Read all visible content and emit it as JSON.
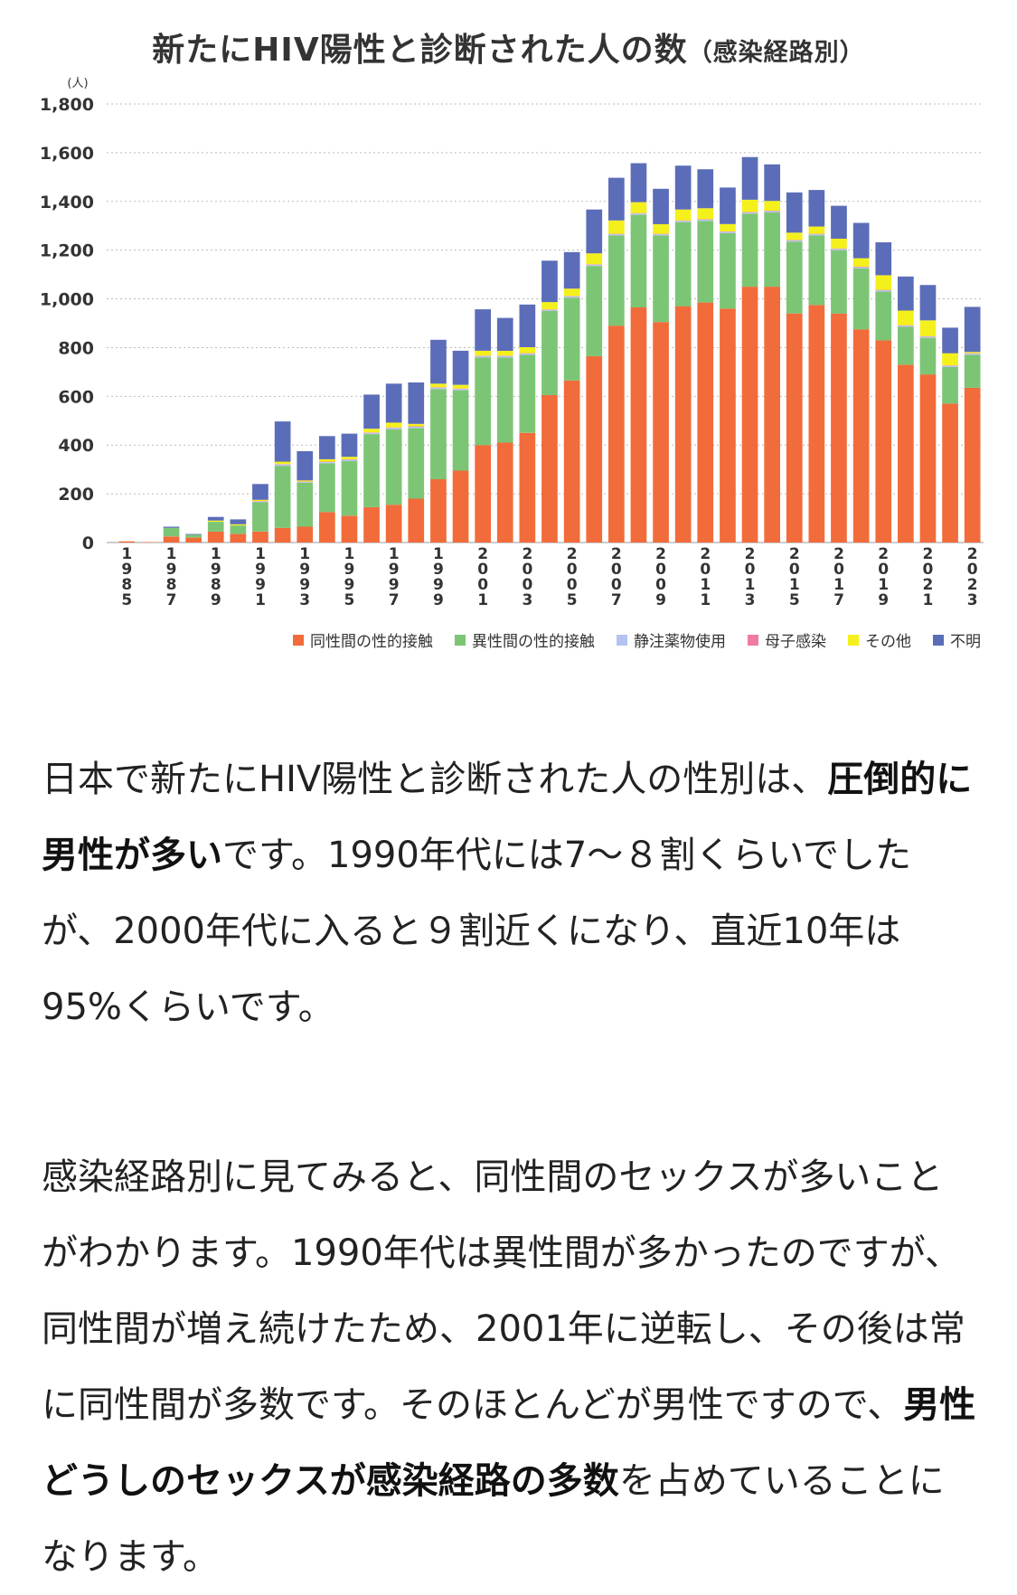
{
  "chart_data": {
    "type": "bar",
    "stacked": true,
    "title": "新たにHIV陽性と診断された人の数",
    "subtitle": "（感染経路別）",
    "ylabel": "(人)",
    "ylim": [
      0,
      1800
    ],
    "yticks": [
      0,
      200,
      400,
      600,
      800,
      1000,
      1200,
      1400,
      1600,
      1800
    ],
    "ytick_labels": [
      "0",
      "200",
      "400",
      "600",
      "800",
      "1,000",
      "1,200",
      "1,400",
      "1,600",
      "1,800"
    ],
    "categories": [
      "1985",
      "1986",
      "1987",
      "1988",
      "1989",
      "1990",
      "1991",
      "1992",
      "1993",
      "1994",
      "1995",
      "1996",
      "1997",
      "1998",
      "1999",
      "2000",
      "2001",
      "2002",
      "2003",
      "2004",
      "2005",
      "2006",
      "2007",
      "2008",
      "2009",
      "2010",
      "2011",
      "2012",
      "2013",
      "2014",
      "2015",
      "2016",
      "2017",
      "2018",
      "2019",
      "2020",
      "2021",
      "2022",
      "2023"
    ],
    "xtick_labels": [
      "1985",
      "1987",
      "1989",
      "1991",
      "1993",
      "1995",
      "1997",
      "1999",
      "2001",
      "2003",
      "2005",
      "2007",
      "2009",
      "2011",
      "2013",
      "2015",
      "2017",
      "2019",
      "2021",
      "2023"
    ],
    "series": [
      {
        "name": "同性間の性的接触",
        "color": "#f26b3a",
        "values": [
          5,
          2,
          25,
          20,
          45,
          35,
          45,
          60,
          65,
          125,
          110,
          145,
          155,
          180,
          260,
          295,
          400,
          410,
          450,
          605,
          665,
          765,
          890,
          965,
          905,
          970,
          985,
          960,
          1050,
          1050,
          940,
          975,
          940,
          875,
          830,
          730,
          690,
          570,
          635
        ]
      },
      {
        "name": "異性間の性的接触",
        "color": "#7cc575",
        "values": [
          0,
          0,
          35,
          12,
          40,
          35,
          120,
          255,
          180,
          200,
          225,
          300,
          310,
          290,
          370,
          330,
          360,
          350,
          320,
          345,
          340,
          370,
          370,
          380,
          355,
          345,
          335,
          310,
          300,
          305,
          295,
          285,
          260,
          250,
          200,
          155,
          150,
          150,
          135
        ]
      },
      {
        "name": "静注薬物使用",
        "color": "#b4c4f0",
        "values": [
          0,
          0,
          0,
          0,
          0,
          0,
          3,
          5,
          3,
          5,
          5,
          5,
          5,
          5,
          5,
          5,
          5,
          5,
          5,
          5,
          5,
          5,
          5,
          5,
          5,
          5,
          5,
          5,
          5,
          5,
          5,
          5,
          5,
          5,
          5,
          5,
          5,
          5,
          5
        ]
      },
      {
        "name": "母子感染",
        "color": "#f07aa6",
        "values": [
          0,
          0,
          0,
          0,
          0,
          0,
          2,
          2,
          2,
          2,
          2,
          2,
          2,
          2,
          2,
          2,
          2,
          2,
          2,
          2,
          2,
          2,
          2,
          2,
          2,
          2,
          2,
          2,
          2,
          2,
          2,
          2,
          2,
          2,
          2,
          2,
          2,
          2,
          2
        ]
      },
      {
        "name": "その他",
        "color": "#f4f01c",
        "values": [
          0,
          0,
          0,
          0,
          5,
          5,
          5,
          10,
          5,
          10,
          10,
          15,
          20,
          10,
          15,
          15,
          20,
          20,
          25,
          30,
          30,
          45,
          55,
          45,
          40,
          45,
          45,
          30,
          50,
          40,
          30,
          30,
          40,
          35,
          60,
          60,
          65,
          50,
          5
        ]
      },
      {
        "name": "不明",
        "color": "#5b6db8",
        "values": [
          0,
          0,
          5,
          3,
          15,
          20,
          65,
          165,
          120,
          95,
          95,
          140,
          160,
          170,
          180,
          140,
          170,
          135,
          175,
          170,
          150,
          180,
          175,
          160,
          145,
          180,
          160,
          150,
          175,
          150,
          165,
          150,
          135,
          145,
          135,
          140,
          145,
          105,
          185
        ]
      }
    ],
    "legend_position": "bottom-right",
    "grid": true
  },
  "article": {
    "p1": {
      "t1": "日本で新たにHIV陽性と診断された人の性別は、",
      "b1": "圧倒的に男性が多い",
      "t2": "です。1990年代には7～８割くらいでしたが、2000年代に入ると９割近くになり、直近10年は95%くらいです。"
    },
    "p2": {
      "t1": "感染経路別に見てみると、同性間のセックスが多いことがわかります。1990年代は異性間が多かったのですが、同性間が増え続けたため、2001年に逆転し、その後は常に同性間が多数です。そのほとんどが男性ですので、",
      "b1": "男性どうしのセックスが感染経路の多数",
      "t2": "を占めていることになります。"
    }
  }
}
